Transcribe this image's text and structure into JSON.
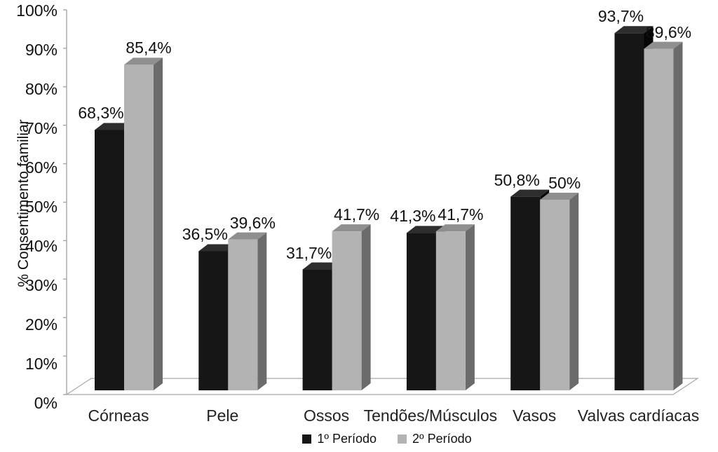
{
  "chart_data": {
    "type": "bar",
    "effect": "3d",
    "title": "",
    "ylabel": "% Consentimento familiar",
    "xlabel": "",
    "categories": [
      "Córneas",
      "Pele",
      "Ossos",
      "Tendões/Músculos",
      "Vasos",
      "Valvas cardíacas"
    ],
    "series": [
      {
        "name": "1º Período",
        "color": "#161616",
        "color_top": "#2d2d2d",
        "color_side": "#060606",
        "values": [
          68.3,
          36.5,
          31.7,
          41.3,
          50.8,
          93.7
        ],
        "labels": [
          "68,3%",
          "36,5%",
          "31,7%",
          "41,3%",
          "50,8%",
          "93,7%"
        ]
      },
      {
        "name": "2º Período",
        "color": "#b3b3b3",
        "color_top": "#8f8f8f",
        "color_side": "#6b6b6b",
        "values": [
          85.4,
          39.6,
          41.7,
          41.7,
          50,
          89.6
        ],
        "labels": [
          "85,4%",
          "39,6%",
          "41,7%",
          "41,7%",
          "50%",
          "89,6%"
        ]
      }
    ],
    "yticks": [
      "0%",
      "10%",
      "20%",
      "30%",
      "40%",
      "50%",
      "60%",
      "70%",
      "80%",
      "90%",
      "100%"
    ],
    "ylim": [
      0,
      100
    ],
    "grid": false,
    "legend_position": "bottom",
    "axis_color": "#a6a6a6"
  }
}
